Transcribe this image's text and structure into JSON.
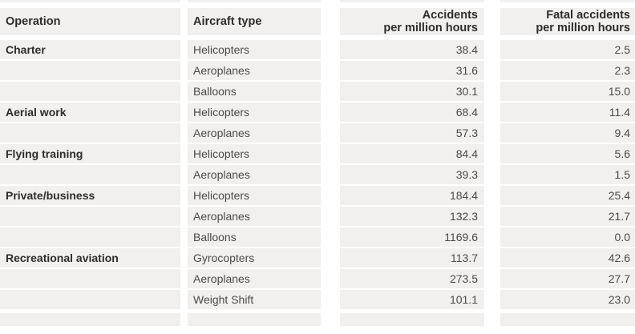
{
  "table": {
    "headers": {
      "operation": "Operation",
      "aircraft_type": "Aircraft type",
      "accidents_line1": "Accidents",
      "accidents_line2": "per million hours",
      "fatal_line1": "Fatal accidents",
      "fatal_line2": "per million hours"
    },
    "colors": {
      "cell_background": "#f1f0ee",
      "header_text": "#2d2d2d",
      "body_text": "#4b4b4b"
    }
  },
  "chart_data": {
    "type": "table",
    "columns": [
      "Operation",
      "Aircraft type",
      "Accidents per million hours",
      "Fatal accidents per million hours"
    ],
    "rows": [
      [
        "Charter",
        "Helicopters",
        "38.4",
        "2.5"
      ],
      [
        "",
        "Aeroplanes",
        "31.6",
        "2.3"
      ],
      [
        "",
        "Balloons",
        "30.1",
        "15.0"
      ],
      [
        "Aerial work",
        "Helicopters",
        "68.4",
        "11.4"
      ],
      [
        "",
        "Aeroplanes",
        "57.3",
        "9.4"
      ],
      [
        "Flying training",
        "Helicopters",
        "84.4",
        "5.6"
      ],
      [
        "",
        "Aeroplanes",
        "39.3",
        "1.5"
      ],
      [
        "Private/business",
        "Helicopters",
        "184.4",
        "25.4"
      ],
      [
        "",
        "Aeroplanes",
        "132.3",
        "21.7"
      ],
      [
        "",
        "Balloons",
        "1169.6",
        "0.0"
      ],
      [
        "Recreational aviation",
        "Gyrocopters",
        "113.7",
        "42.6"
      ],
      [
        "",
        "Aeroplanes",
        "273.5",
        "27.7"
      ],
      [
        "",
        "Weight Shift",
        "101.1",
        "23.0"
      ]
    ]
  }
}
